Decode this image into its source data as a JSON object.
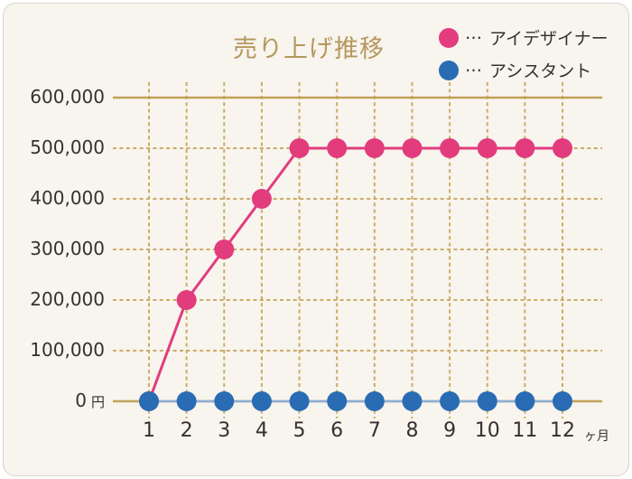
{
  "panel": {
    "background_color": "#F8F4EE",
    "border_color": "#D7D3CC"
  },
  "title": {
    "text": "売り上げ推移",
    "color": "#B4985C"
  },
  "legend": {
    "items": [
      {
        "id": "eye-designer",
        "prefix": "…",
        "label": "アイデザイナー",
        "color": "#E23C7D"
      },
      {
        "id": "assistant",
        "prefix": "…",
        "label": "アシスタント",
        "color": "#2A6CB4"
      }
    ]
  },
  "chart_data": {
    "type": "line",
    "title": "売り上げ推移",
    "x": [
      1,
      2,
      3,
      4,
      5,
      6,
      7,
      8,
      9,
      10,
      11,
      12
    ],
    "x_unit": "ヶ月",
    "y_unit": "円",
    "ylim": [
      0,
      600000
    ],
    "y_ticks": [
      0,
      100000,
      200000,
      300000,
      400000,
      500000,
      600000
    ],
    "y_tick_labels": [
      "0",
      "100,000",
      "200,000",
      "300,000",
      "400,000",
      "500,000",
      "600,000"
    ],
    "grid": {
      "style": "dashed",
      "color": "#C9AC68",
      "solid_color": "#C2A158",
      "solid_lines_at": [
        0,
        600000
      ]
    },
    "legend_position": "top-right",
    "series": [
      {
        "id": "eye-designer",
        "name": "アイデザイナー",
        "color": "#E23C7D",
        "line_color": "#E23C7D",
        "line_width": 3,
        "values": [
          0,
          200000,
          300000,
          400000,
          500000,
          500000,
          500000,
          500000,
          500000,
          500000,
          500000,
          500000
        ]
      },
      {
        "id": "assistant",
        "name": "アシスタント",
        "color": "#2A6CB4",
        "line_color": "#8FAFD6",
        "line_width": 2.5,
        "values": [
          0,
          0,
          0,
          0,
          0,
          0,
          0,
          0,
          0,
          0,
          0,
          0
        ]
      }
    ]
  }
}
